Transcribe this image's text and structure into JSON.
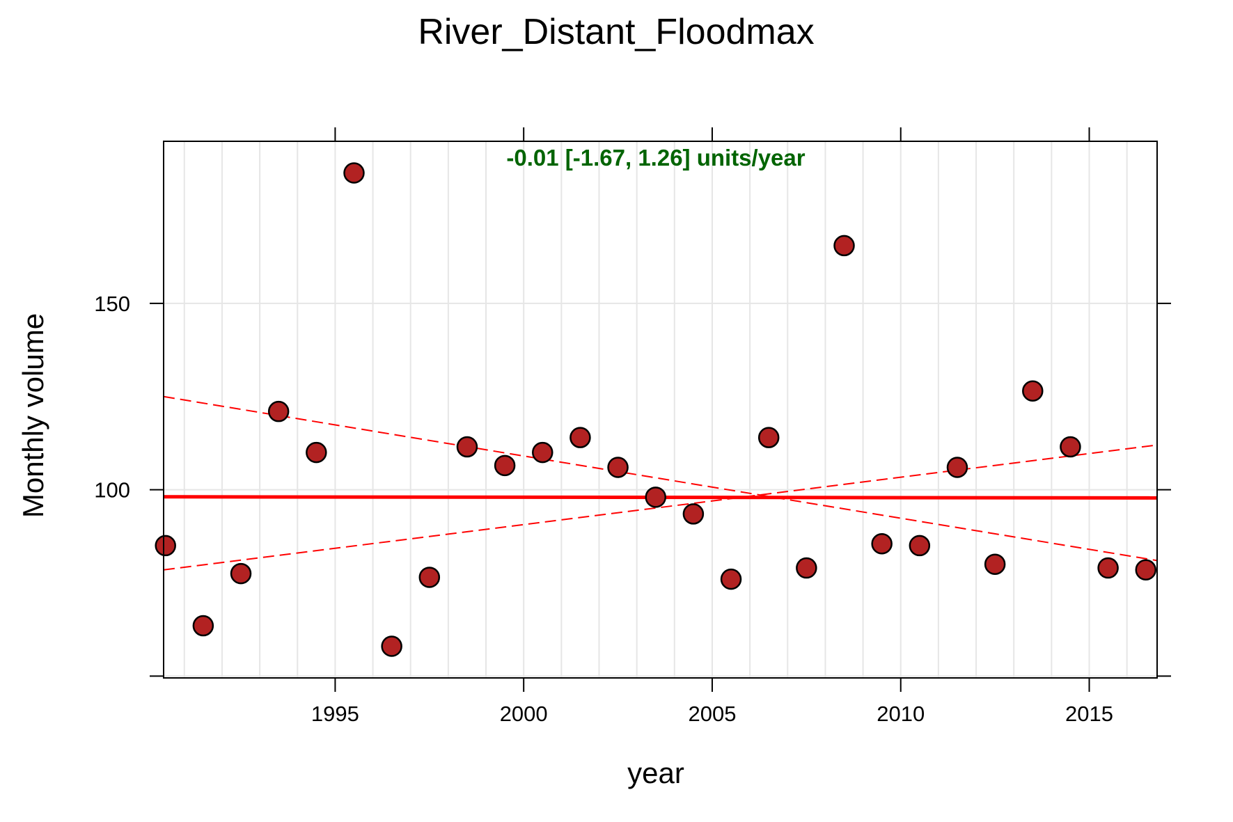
{
  "chart_data": {
    "type": "scatter",
    "title": "River_Distant_Floodmax",
    "xlabel": "year",
    "ylabel": "Monthly volume",
    "annotation": "-0.01 [-1.67, 1.26] units/year",
    "xlim": [
      1990.45,
      2016.8
    ],
    "ylim": [
      49.5,
      193.5
    ],
    "x_ticks": [
      1995,
      2000,
      2005,
      2010,
      2015
    ],
    "y_ticks": [
      50,
      100,
      150
    ],
    "y_tick_labels": [
      "",
      "100",
      "150"
    ],
    "grid": true,
    "series": [
      {
        "x": [
          1990.5,
          1991.5,
          1992.5,
          1993.5,
          1994.5,
          1995.5,
          1996.5,
          1997.5,
          1998.5,
          1999.5,
          2000.5,
          2001.5,
          2002.5,
          2003.5,
          2004.5,
          2005.5,
          2006.5,
          2007.5,
          2008.5,
          2009.5,
          2010.5,
          2011.5,
          2012.5,
          2013.5,
          2014.5,
          2015.5,
          2016.5
        ],
        "y": [
          85,
          63.5,
          77.5,
          121,
          110,
          185,
          58,
          76.5,
          111.5,
          106.5,
          110,
          114,
          106,
          98,
          93.5,
          76,
          114,
          79,
          165.5,
          85.5,
          85,
          106,
          80,
          126.5,
          111.5,
          79,
          78.5
        ]
      }
    ],
    "trend": {
      "color": "#ff0000",
      "central": {
        "x": [
          1990.45,
          2016.8
        ],
        "y": [
          98.1,
          97.8
        ]
      },
      "lower": {
        "x": [
          1990.45,
          2016.8
        ],
        "y": [
          78.5,
          112
        ]
      },
      "upper": {
        "x": [
          1990.45,
          2016.8
        ],
        "y": [
          125,
          81
        ]
      }
    },
    "colors": {
      "point_fill": "#b22222",
      "point_stroke": "#000000",
      "annotation": "#006400",
      "grid": "#e6e6e6"
    }
  }
}
